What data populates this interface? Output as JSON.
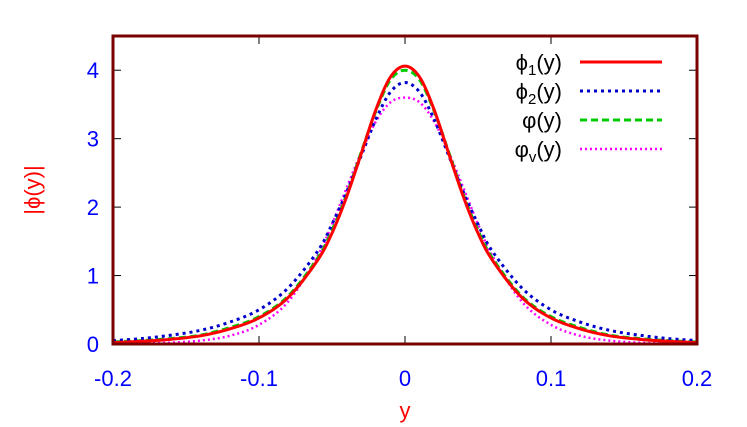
{
  "chart_data": {
    "type": "line",
    "xlabel": "y",
    "ylabel": "|ϕ(y)|",
    "xlim": [
      -0.2,
      0.2
    ],
    "ylim": [
      0,
      4.5
    ],
    "xticks": [
      -0.2,
      -0.1,
      0,
      0.1,
      0.2
    ],
    "xtick_labels": [
      "-0.2",
      "-0.1",
      "0",
      "0.1",
      "0.2"
    ],
    "yticks": [
      0,
      1,
      2,
      3,
      4
    ],
    "ytick_labels": [
      "0",
      "1",
      "2",
      "3",
      "4"
    ],
    "grid": false,
    "legend_position": "top-right",
    "colors": {
      "frame": "#7a0000",
      "tick_labels": "#0000ff",
      "axis_titles": "#ff0000"
    },
    "x": [
      -0.2,
      -0.18,
      -0.16,
      -0.14,
      -0.12,
      -0.1,
      -0.08,
      -0.06,
      -0.05,
      -0.04,
      -0.03,
      -0.02,
      -0.01,
      0,
      0.01,
      0.02,
      0.03,
      0.04,
      0.05,
      0.06,
      0.08,
      0.1,
      0.12,
      0.14,
      0.16,
      0.18,
      0.2
    ],
    "series": [
      {
        "legend_main": "ϕ",
        "legend_sub": "1",
        "legend_tail": "(y)",
        "color": "#ff0000",
        "dash": "",
        "width": 3,
        "values": [
          0.02,
          0.04,
          0.07,
          0.12,
          0.22,
          0.38,
          0.68,
          1.22,
          1.62,
          2.15,
          2.78,
          3.42,
          3.9,
          4.06,
          3.9,
          3.42,
          2.78,
          2.15,
          1.62,
          1.22,
          0.68,
          0.38,
          0.22,
          0.12,
          0.07,
          0.04,
          0.02
        ]
      },
      {
        "legend_main": "ϕ",
        "legend_sub": "2",
        "legend_tail": "(y)",
        "color": "#0000cc",
        "dash": "3 4",
        "width": 3,
        "values": [
          0.05,
          0.08,
          0.13,
          0.2,
          0.32,
          0.5,
          0.82,
          1.35,
          1.75,
          2.22,
          2.75,
          3.28,
          3.68,
          3.82,
          3.68,
          3.28,
          2.75,
          2.22,
          1.75,
          1.35,
          0.82,
          0.5,
          0.32,
          0.2,
          0.13,
          0.08,
          0.05
        ]
      },
      {
        "legend_main": "φ",
        "legend_sub": "",
        "legend_tail": "(y)",
        "color": "#00cc00",
        "dash": "7 4",
        "width": 3,
        "values": [
          0.03,
          0.05,
          0.08,
          0.13,
          0.24,
          0.4,
          0.7,
          1.25,
          1.66,
          2.18,
          2.8,
          3.4,
          3.86,
          4.0,
          3.86,
          3.4,
          2.8,
          2.18,
          1.66,
          1.25,
          0.7,
          0.4,
          0.24,
          0.13,
          0.08,
          0.05,
          0.03
        ]
      },
      {
        "legend_main": "φ",
        "legend_sub": "v",
        "legend_tail": "(y)",
        "color": "#ff00ff",
        "dash": "2 3",
        "width": 2.5,
        "values": [
          0.005,
          0.01,
          0.02,
          0.05,
          0.12,
          0.28,
          0.62,
          1.28,
          1.75,
          2.28,
          2.8,
          3.25,
          3.53,
          3.6,
          3.53,
          3.25,
          2.8,
          2.28,
          1.75,
          1.28,
          0.62,
          0.28,
          0.12,
          0.05,
          0.02,
          0.01,
          0.005
        ]
      }
    ]
  }
}
